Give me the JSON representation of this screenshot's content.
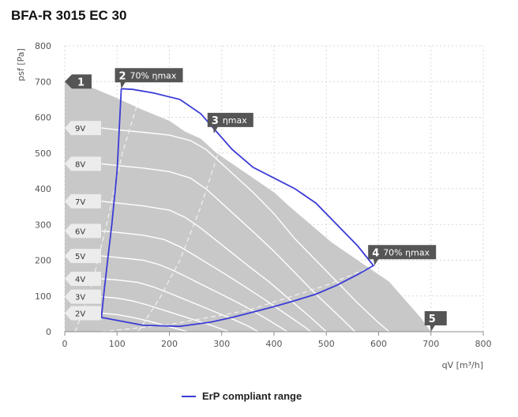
{
  "title": "BFA-R 3015 EC 30",
  "chart_data": {
    "type": "line",
    "xlabel": "qV [m³/h]",
    "ylabel": "psf [Pa]",
    "xlim": [
      0,
      800
    ],
    "ylim": [
      0,
      800
    ],
    "xticks": [
      0,
      100,
      200,
      300,
      400,
      500,
      600,
      700,
      800
    ],
    "yticks": [
      0,
      100,
      200,
      300,
      400,
      500,
      600,
      700,
      800
    ],
    "grid": true,
    "operating_area": [
      [
        0,
        700
      ],
      [
        40,
        690
      ],
      [
        90,
        660
      ],
      [
        150,
        620
      ],
      [
        200,
        590
      ],
      [
        230,
        560
      ],
      [
        260,
        540
      ],
      [
        290,
        500
      ],
      [
        320,
        470
      ],
      [
        350,
        440
      ],
      [
        380,
        410
      ],
      [
        400,
        390
      ],
      [
        430,
        350
      ],
      [
        470,
        300
      ],
      [
        510,
        250
      ],
      [
        550,
        210
      ],
      [
        590,
        170
      ],
      [
        620,
        140
      ],
      [
        650,
        90
      ],
      [
        680,
        40
      ],
      [
        700,
        0
      ],
      [
        0,
        0
      ]
    ],
    "voltage_curves": [
      {
        "name": "9V",
        "points": [
          [
            70,
            570
          ],
          [
            100,
            565
          ],
          [
            150,
            558
          ],
          [
            200,
            550
          ],
          [
            240,
            535
          ],
          [
            270,
            510
          ],
          [
            300,
            470
          ],
          [
            330,
            430
          ],
          [
            360,
            390
          ],
          [
            400,
            330
          ],
          [
            440,
            260
          ],
          [
            480,
            200
          ],
          [
            520,
            140
          ],
          [
            560,
            80
          ],
          [
            600,
            25
          ],
          [
            620,
            0
          ]
        ]
      },
      {
        "name": "8V",
        "points": [
          [
            70,
            470
          ],
          [
            100,
            465
          ],
          [
            150,
            458
          ],
          [
            200,
            448
          ],
          [
            240,
            430
          ],
          [
            270,
            400
          ],
          [
            300,
            360
          ],
          [
            330,
            320
          ],
          [
            360,
            280
          ],
          [
            400,
            225
          ],
          [
            440,
            165
          ],
          [
            480,
            105
          ],
          [
            520,
            50
          ],
          [
            555,
            0
          ]
        ]
      },
      {
        "name": "7V",
        "points": [
          [
            70,
            365
          ],
          [
            100,
            360
          ],
          [
            150,
            352
          ],
          [
            200,
            340
          ],
          [
            230,
            320
          ],
          [
            260,
            290
          ],
          [
            290,
            255
          ],
          [
            320,
            220
          ],
          [
            350,
            185
          ],
          [
            390,
            140
          ],
          [
            430,
            90
          ],
          [
            470,
            40
          ],
          [
            500,
            0
          ]
        ]
      },
      {
        "name": "6V",
        "points": [
          [
            70,
            282
          ],
          [
            100,
            278
          ],
          [
            150,
            270
          ],
          [
            190,
            258
          ],
          [
            220,
            238
          ],
          [
            250,
            212
          ],
          [
            280,
            185
          ],
          [
            310,
            158
          ],
          [
            340,
            130
          ],
          [
            380,
            92
          ],
          [
            420,
            52
          ],
          [
            460,
            12
          ],
          [
            470,
            0
          ]
        ]
      },
      {
        "name": "5V",
        "points": [
          [
            70,
            212
          ],
          [
            100,
            208
          ],
          [
            150,
            200
          ],
          [
            180,
            188
          ],
          [
            210,
            170
          ],
          [
            240,
            148
          ],
          [
            270,
            126
          ],
          [
            300,
            104
          ],
          [
            330,
            82
          ],
          [
            360,
            58
          ],
          [
            390,
            32
          ],
          [
            420,
            5
          ],
          [
            425,
            0
          ]
        ]
      },
      {
        "name": "4V",
        "points": [
          [
            70,
            148
          ],
          [
            100,
            145
          ],
          [
            140,
            138
          ],
          [
            170,
            125
          ],
          [
            200,
            108
          ],
          [
            230,
            90
          ],
          [
            260,
            72
          ],
          [
            290,
            54
          ],
          [
            320,
            36
          ],
          [
            350,
            16
          ],
          [
            370,
            0
          ]
        ]
      },
      {
        "name": "3V",
        "points": [
          [
            70,
            98
          ],
          [
            100,
            94
          ],
          [
            130,
            86
          ],
          [
            160,
            74
          ],
          [
            190,
            60
          ],
          [
            220,
            46
          ],
          [
            250,
            32
          ],
          [
            280,
            18
          ],
          [
            310,
            2
          ],
          [
            312,
            0
          ]
        ]
      },
      {
        "name": "2V",
        "points": [
          [
            70,
            52
          ],
          [
            100,
            48
          ],
          [
            130,
            40
          ],
          [
            160,
            30
          ],
          [
            190,
            18
          ],
          [
            220,
            6
          ],
          [
            235,
            0
          ]
        ]
      }
    ],
    "efficiency_lines": [
      {
        "label": "70% ηmax",
        "points": [
          [
            20,
            0
          ],
          [
            50,
            120
          ],
          [
            80,
            300
          ],
          [
            110,
            500
          ],
          [
            150,
            690
          ]
        ]
      },
      {
        "label": "ηmax",
        "points": [
          [
            140,
            0
          ],
          [
            180,
            90
          ],
          [
            220,
            200
          ],
          [
            260,
            350
          ],
          [
            300,
            530
          ]
        ]
      },
      {
        "label": "70% ηmax",
        "points": [
          [
            70,
            0
          ],
          [
            200,
            20
          ],
          [
            350,
            60
          ],
          [
            500,
            130
          ],
          [
            600,
            190
          ]
        ]
      }
    ],
    "erp_range": [
      [
        108,
        680
      ],
      [
        130,
        678
      ],
      [
        170,
        668
      ],
      [
        220,
        650
      ],
      [
        260,
        610
      ],
      [
        290,
        560
      ],
      [
        320,
        510
      ],
      [
        360,
        460
      ],
      [
        400,
        430
      ],
      [
        440,
        400
      ],
      [
        480,
        360
      ],
      [
        520,
        300
      ],
      [
        560,
        240
      ],
      [
        590,
        185
      ],
      [
        560,
        160
      ],
      [
        520,
        130
      ],
      [
        480,
        105
      ],
      [
        440,
        87
      ],
      [
        400,
        70
      ],
      [
        360,
        55
      ],
      [
        320,
        40
      ],
      [
        280,
        27
      ],
      [
        220,
        15
      ],
      [
        150,
        18
      ],
      [
        70,
        40
      ],
      [
        75,
        110
      ],
      [
        82,
        200
      ],
      [
        90,
        300
      ],
      [
        100,
        450
      ],
      [
        108,
        680
      ]
    ],
    "markers": [
      {
        "id": "1",
        "label": "",
        "x": 15,
        "y": 700
      },
      {
        "id": "2",
        "label": "70% ηmax",
        "x": 108,
        "y": 680
      },
      {
        "id": "3",
        "label": "ηmax",
        "x": 285,
        "y": 555
      },
      {
        "id": "4",
        "label": "70% ηmax",
        "x": 592,
        "y": 185
      },
      {
        "id": "5",
        "label": "",
        "x": 700,
        "y": 0
      }
    ],
    "legend": [
      {
        "name": "ErP compliant range",
        "color": "#3b3bd6"
      }
    ]
  }
}
